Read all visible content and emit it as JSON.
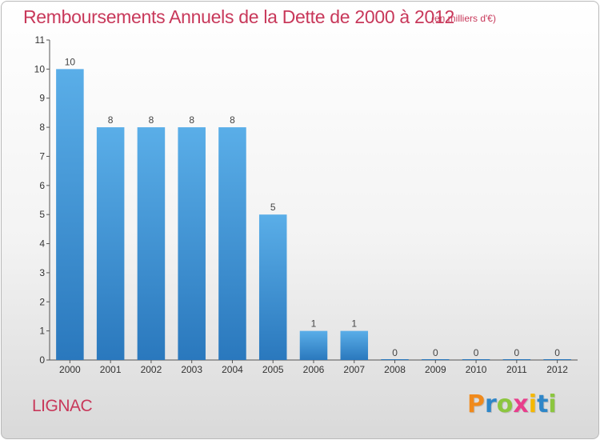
{
  "header": {
    "title": "Remboursements Annuels de la Dette de 2000 à 2012",
    "unit": "(en milliers d'€)"
  },
  "footer": {
    "commune": "LIGNAC",
    "logo_letters": [
      {
        "char": "P",
        "color": "#f08a1c"
      },
      {
        "char": "r",
        "color": "#2e86c8"
      },
      {
        "char": "o",
        "color": "#8cc63f"
      },
      {
        "char": "x",
        "color": "#e83e8c"
      },
      {
        "char": "i",
        "color": "#f5b800"
      },
      {
        "char": "t",
        "color": "#2e86c8"
      },
      {
        "char": "i",
        "color": "#8cc63f"
      }
    ]
  },
  "chart_data": {
    "type": "bar",
    "title": "Remboursements Annuels de la Dette de 2000 à 2012",
    "xlabel": "",
    "ylabel": "",
    "ylim": [
      0,
      11
    ],
    "yticks": [
      "0",
      "1",
      "2",
      "3",
      "4",
      "5",
      "6",
      "7",
      "8",
      "9",
      "10",
      "11"
    ],
    "categories": [
      "2000",
      "2001",
      "2002",
      "2003",
      "2004",
      "2005",
      "2006",
      "2007",
      "2008",
      "2009",
      "2010",
      "2011",
      "2012"
    ],
    "values": [
      10,
      8,
      8,
      8,
      8,
      5,
      1,
      1,
      0,
      0,
      0,
      0,
      0
    ],
    "value_labels": [
      "10",
      "8",
      "8",
      "8",
      "8",
      "5",
      "1",
      "1",
      "0",
      "0",
      "0",
      "0",
      "0"
    ],
    "bar_color": "#3a8fd4",
    "grid": false,
    "legend": "none"
  }
}
